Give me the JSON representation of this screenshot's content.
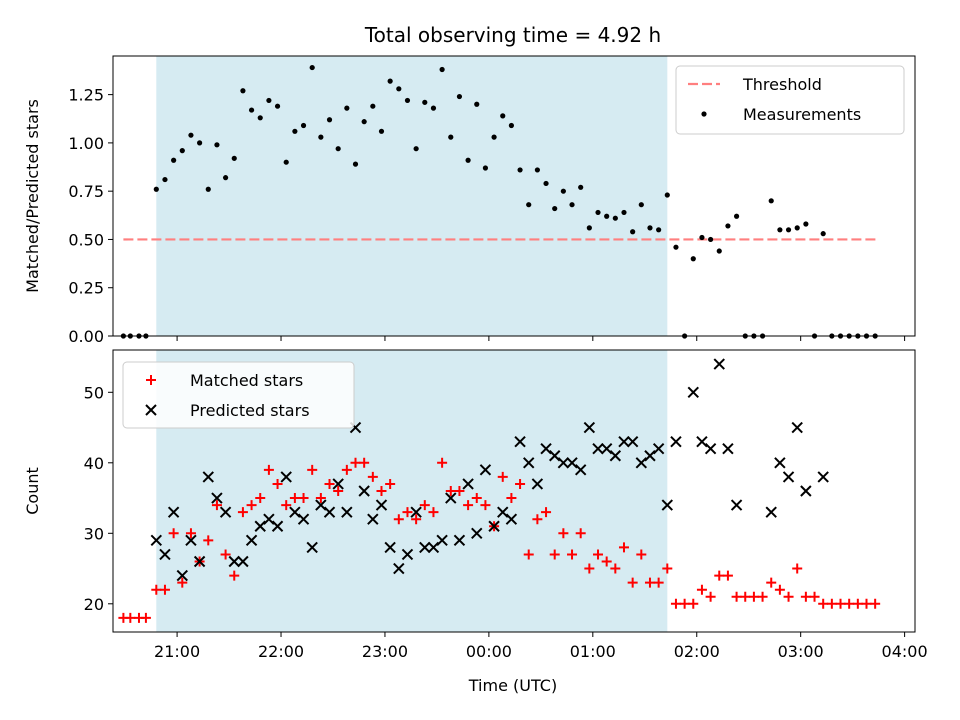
{
  "figure": {
    "title": "Total observing time = 4.92 h",
    "xlabel": "Time (UTC)"
  },
  "colors": {
    "shade": "#add8e6",
    "threshold": "#ff7f7f",
    "measurements": "#000000",
    "matched": "#ff0000",
    "predicted": "#000000"
  },
  "chart_data": [
    {
      "type": "scatter",
      "ylabel": "Matched/Predicted stars",
      "xlim": [
        "20:23",
        "04:06"
      ],
      "ylim": [
        0,
        1.45
      ],
      "x_ticks": [
        "21:00",
        "22:00",
        "23:00",
        "00:00",
        "01:00",
        "02:00",
        "03:00",
        "04:00"
      ],
      "y_ticks": [
        "0.00",
        "0.25",
        "0.50",
        "0.75",
        "1.00",
        "1.25"
      ],
      "shaded_span": [
        "20:48",
        "01:43"
      ],
      "legend": "top-right",
      "series": [
        {
          "name": "Threshold",
          "style": "dashed-line",
          "x": [
            "20:29",
            "03:44"
          ],
          "y": [
            0.5,
            0.5
          ]
        },
        {
          "name": "Measurements",
          "style": "dot",
          "x": [
            "20:29",
            "20:33",
            "20:38",
            "20:42",
            "20:48",
            "20:53",
            "20:58",
            "21:03",
            "21:08",
            "21:13",
            "21:18",
            "21:23",
            "21:28",
            "21:33",
            "21:38",
            "21:43",
            "21:48",
            "21:53",
            "21:58",
            "22:03",
            "22:08",
            "22:13",
            "22:18",
            "22:23",
            "22:28",
            "22:33",
            "22:38",
            "22:43",
            "22:48",
            "22:53",
            "22:58",
            "23:03",
            "23:08",
            "23:13",
            "23:18",
            "23:23",
            "23:28",
            "23:33",
            "23:38",
            "23:43",
            "23:48",
            "23:53",
            "23:58",
            "00:03",
            "00:08",
            "00:13",
            "00:18",
            "00:23",
            "00:28",
            "00:33",
            "00:38",
            "00:43",
            "00:48",
            "00:53",
            "00:58",
            "01:03",
            "01:08",
            "01:13",
            "01:18",
            "01:23",
            "01:28",
            "01:33",
            "01:38",
            "01:43",
            "01:48",
            "01:53",
            "01:58",
            "02:03",
            "02:08",
            "02:13",
            "02:18",
            "02:23",
            "02:28",
            "02:33",
            "02:38",
            "02:43",
            "02:48",
            "02:53",
            "02:58",
            "03:03",
            "03:08",
            "03:13",
            "03:18",
            "03:23",
            "03:28",
            "03:33",
            "03:38",
            "03:43"
          ],
          "y": [
            0,
            0,
            0,
            0,
            0.76,
            0.81,
            0.91,
            0.96,
            1.04,
            1.0,
            0.76,
            0.99,
            0.82,
            0.92,
            1.27,
            1.17,
            1.13,
            1.22,
            1.19,
            0.9,
            1.06,
            1.09,
            1.39,
            1.03,
            1.12,
            0.97,
            1.18,
            0.89,
            1.11,
            1.19,
            1.06,
            1.32,
            1.28,
            1.22,
            0.97,
            1.21,
            1.18,
            1.38,
            1.03,
            1.24,
            0.91,
            1.2,
            0.87,
            1.03,
            1.14,
            1.09,
            0.86,
            0.68,
            0.86,
            0.79,
            0.66,
            0.75,
            0.68,
            0.77,
            0.56,
            0.64,
            0.62,
            0.61,
            0.64,
            0.54,
            0.68,
            0.56,
            0.55,
            0.73,
            0.46,
            0,
            0.4,
            0.51,
            0.5,
            0.44,
            0.57,
            0.62,
            0,
            0,
            0,
            0.7,
            0.55,
            0.55,
            0.56,
            0.58,
            0,
            0.53,
            0,
            0,
            0,
            0,
            0,
            0
          ]
        }
      ]
    },
    {
      "type": "scatter",
      "ylabel": "Count",
      "xlim": [
        "20:23",
        "04:06"
      ],
      "ylim": [
        16,
        56
      ],
      "x_ticks": [
        "21:00",
        "22:00",
        "23:00",
        "00:00",
        "01:00",
        "02:00",
        "03:00",
        "04:00"
      ],
      "y_ticks": [
        "20",
        "30",
        "40",
        "50"
      ],
      "shaded_span": [
        "20:48",
        "01:43"
      ],
      "legend": "top-left",
      "series": [
        {
          "name": "Matched stars",
          "style": "plus",
          "x": [
            "20:29",
            "20:33",
            "20:38",
            "20:42",
            "20:48",
            "20:53",
            "20:58",
            "21:03",
            "21:08",
            "21:13",
            "21:18",
            "21:23",
            "21:28",
            "21:33",
            "21:38",
            "21:43",
            "21:48",
            "21:53",
            "21:58",
            "22:03",
            "22:08",
            "22:13",
            "22:18",
            "22:23",
            "22:28",
            "22:33",
            "22:38",
            "22:43",
            "22:48",
            "22:53",
            "22:58",
            "23:03",
            "23:08",
            "23:13",
            "23:18",
            "23:23",
            "23:28",
            "23:33",
            "23:38",
            "23:43",
            "23:48",
            "23:53",
            "23:58",
            "00:03",
            "00:08",
            "00:13",
            "00:18",
            "00:23",
            "00:28",
            "00:33",
            "00:38",
            "00:43",
            "00:48",
            "00:53",
            "00:58",
            "01:03",
            "01:08",
            "01:13",
            "01:18",
            "01:23",
            "01:28",
            "01:33",
            "01:38",
            "01:43",
            "01:48",
            "01:53",
            "01:58",
            "02:03",
            "02:08",
            "02:13",
            "02:18",
            "02:23",
            "02:28",
            "02:33",
            "02:38",
            "02:43",
            "02:48",
            "02:53",
            "02:58",
            "03:03",
            "03:08",
            "03:13",
            "03:18",
            "03:23",
            "03:28",
            "03:33",
            "03:38",
            "03:43"
          ],
          "y": [
            18,
            18,
            18,
            18,
            22,
            22,
            30,
            23,
            30,
            26,
            29,
            34,
            27,
            24,
            33,
            34,
            35,
            39,
            37,
            34,
            35,
            35,
            39,
            35,
            37,
            36,
            39,
            40,
            40,
            38,
            36,
            37,
            32,
            33,
            32,
            34,
            33,
            40,
            36,
            36,
            34,
            35,
            34,
            31,
            38,
            35,
            37,
            27,
            32,
            33,
            27,
            30,
            27,
            30,
            25,
            27,
            26,
            25,
            28,
            23,
            27,
            23,
            23,
            25,
            20,
            20,
            20,
            22,
            21,
            24,
            24,
            21,
            21,
            21,
            21,
            23,
            22,
            21,
            25,
            21,
            21,
            20,
            20,
            20,
            20,
            20,
            20,
            20
          ]
        },
        {
          "name": "Predicted stars",
          "style": "x",
          "x": [
            "20:48",
            "20:53",
            "20:58",
            "21:03",
            "21:08",
            "21:13",
            "21:18",
            "21:23",
            "21:28",
            "21:33",
            "21:38",
            "21:43",
            "21:48",
            "21:53",
            "21:58",
            "22:03",
            "22:08",
            "22:13",
            "22:18",
            "22:23",
            "22:28",
            "22:33",
            "22:38",
            "22:43",
            "22:48",
            "22:53",
            "22:58",
            "23:03",
            "23:08",
            "23:13",
            "23:18",
            "23:23",
            "23:28",
            "23:33",
            "23:38",
            "23:43",
            "23:48",
            "23:53",
            "23:58",
            "00:03",
            "00:08",
            "00:13",
            "00:18",
            "00:23",
            "00:28",
            "00:33",
            "00:38",
            "00:43",
            "00:48",
            "00:53",
            "00:58",
            "01:03",
            "01:08",
            "01:13",
            "01:18",
            "01:23",
            "01:28",
            "01:33",
            "01:38",
            "01:43",
            "01:48",
            "01:58",
            "02:03",
            "02:08",
            "02:13",
            "02:18",
            "02:23",
            "02:43",
            "02:48",
            "02:53",
            "02:58",
            "03:03",
            "03:13"
          ],
          "y": [
            29,
            27,
            33,
            24,
            29,
            26,
            38,
            35,
            33,
            26,
            26,
            29,
            31,
            32,
            31,
            38,
            33,
            32,
            28,
            34,
            33,
            37,
            33,
            45,
            36,
            32,
            34,
            28,
            25,
            27,
            33,
            28,
            28,
            29,
            35,
            29,
            37,
            30,
            39,
            31,
            33,
            32,
            43,
            40,
            37,
            42,
            41,
            40,
            40,
            39,
            45,
            42,
            42,
            41,
            43,
            43,
            40,
            41,
            42,
            34,
            43,
            50,
            43,
            42,
            54,
            42,
            34,
            33,
            40,
            38,
            45,
            36,
            38
          ]
        }
      ]
    }
  ]
}
